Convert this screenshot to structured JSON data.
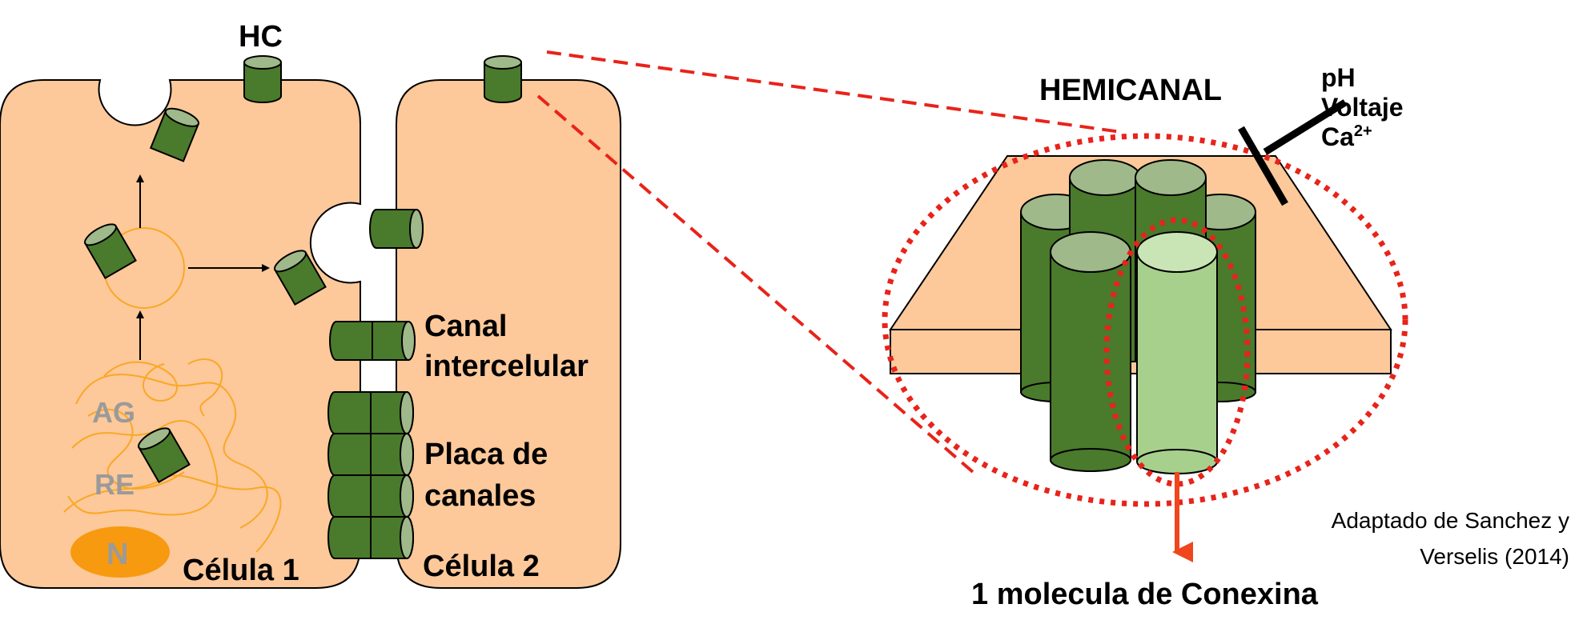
{
  "labels": {
    "hc": "HC",
    "ag": "AG",
    "re": "RE",
    "n": "N",
    "cell1": "Célula 1",
    "cell2": "Célula 2",
    "canal_line1": "Canal",
    "canal_line2": "intercelular",
    "placa_line1": "Placa de",
    "placa_line2": "canales",
    "hemicanal": "HEMICANAL",
    "ph": "pH",
    "voltaje": "Voltaje",
    "ca": "Ca",
    "ca_sup": "2+",
    "conexina": "1 molecula de Conexina",
    "credit_line1": "Adaptado de Sanchez y",
    "credit_line2": "Verselis (2014)"
  },
  "colors": {
    "cell_fill": "#fdc89a",
    "connexon_dark": "#4a7a2c",
    "connexon_light": "#a8d08d",
    "connexon_top": "#9fb98a",
    "nucleus": "#f79a10",
    "organelle_line": "#f9a825",
    "red_dash": "#e8231a",
    "arrow_red": "#f0461e"
  },
  "icons": {
    "arrows": "arrow-right-icon",
    "sensor": "t-shaped-sensor-icon"
  }
}
